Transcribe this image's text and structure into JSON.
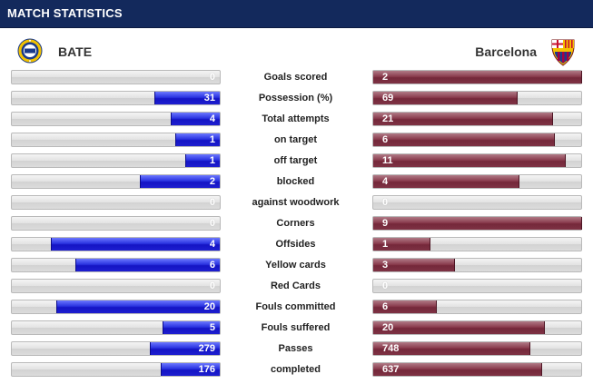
{
  "header": {
    "title": "MATCH STATISTICS"
  },
  "teams": {
    "home": {
      "name": "BATE",
      "logo": "bate-crest-icon",
      "color": "#1414c4"
    },
    "away": {
      "name": "Barcelona",
      "logo": "barcelona-crest-icon",
      "color": "#74283a"
    }
  },
  "stats": [
    {
      "label": "Goals scored",
      "home": "0",
      "away": "2",
      "home_frac": 0,
      "away_frac": 1
    },
    {
      "label": "Possession (%)",
      "home": "31",
      "away": "69",
      "home_frac": 0.31,
      "away_frac": 0.69
    },
    {
      "label": "Total attempts",
      "home": "4",
      "away": "21",
      "home_frac": 0.23,
      "away_frac": 0.86
    },
    {
      "label": "on target",
      "home": "1",
      "away": "6",
      "home_frac": 0.21,
      "away_frac": 0.87
    },
    {
      "label": "off target",
      "home": "1",
      "away": "11",
      "home_frac": 0.16,
      "away_frac": 0.92
    },
    {
      "label": "blocked",
      "home": "2",
      "away": "4",
      "home_frac": 0.38,
      "away_frac": 0.7
    },
    {
      "label": "against woodwork",
      "home": "0",
      "away": "0",
      "home_frac": 0,
      "away_frac": 0
    },
    {
      "label": "Corners",
      "home": "0",
      "away": "9",
      "home_frac": 0,
      "away_frac": 1
    },
    {
      "label": "Offsides",
      "home": "4",
      "away": "1",
      "home_frac": 0.81,
      "away_frac": 0.27
    },
    {
      "label": "Yellow cards",
      "home": "6",
      "away": "3",
      "home_frac": 0.69,
      "away_frac": 0.39
    },
    {
      "label": "Red Cards",
      "home": "0",
      "away": "0",
      "home_frac": 0,
      "away_frac": 0
    },
    {
      "label": "Fouls committed",
      "home": "20",
      "away": "6",
      "home_frac": 0.78,
      "away_frac": 0.3
    },
    {
      "label": "Fouls suffered",
      "home": "5",
      "away": "20",
      "home_frac": 0.27,
      "away_frac": 0.82
    },
    {
      "label": "Passes",
      "home": "279",
      "away": "748",
      "home_frac": 0.33,
      "away_frac": 0.75
    },
    {
      "label": "completed",
      "home": "176",
      "away": "637",
      "home_frac": 0.28,
      "away_frac": 0.81
    }
  ]
}
